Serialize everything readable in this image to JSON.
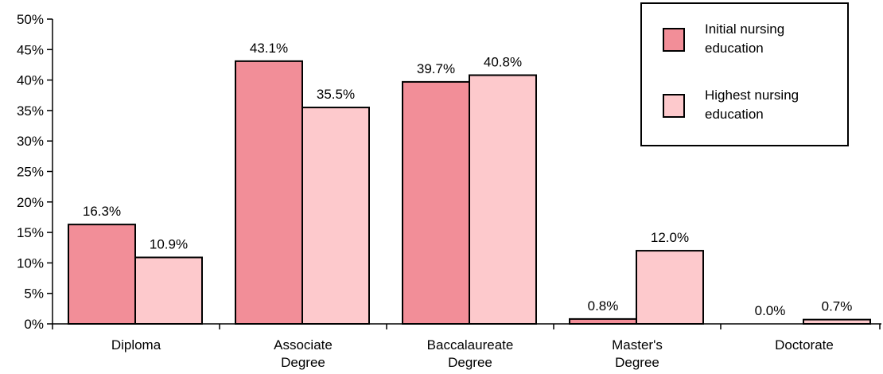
{
  "chart_data": {
    "type": "bar",
    "title": "",
    "xlabel": "",
    "ylabel": "",
    "categories": [
      [
        "Diploma"
      ],
      [
        "Associate",
        "Degree"
      ],
      [
        "Baccalaureate",
        "Degree"
      ],
      [
        "Master's",
        "Degree"
      ],
      [
        "Doctorate"
      ]
    ],
    "series": [
      {
        "name": [
          "Initial nursing",
          "education"
        ],
        "color": "#f28e98",
        "values": [
          16.3,
          43.1,
          39.7,
          0.8,
          0.0
        ],
        "labels": [
          "16.3%",
          "43.1%",
          "39.7%",
          "0.8%",
          "0.0%"
        ]
      },
      {
        "name": [
          "Highest nursing",
          "education"
        ],
        "color": "#fdc9cc",
        "values": [
          10.9,
          35.5,
          40.8,
          12.0,
          0.7
        ],
        "labels": [
          "10.9%",
          "35.5%",
          "40.8%",
          "12.0%",
          "0.7%"
        ]
      }
    ],
    "ylim": [
      0,
      50
    ],
    "yticks": [
      "0%",
      "5%",
      "10%",
      "15%",
      "20%",
      "25%",
      "30%",
      "35%",
      "40%",
      "45%",
      "50%"
    ],
    "legend_position": "top-right",
    "grid": false
  }
}
